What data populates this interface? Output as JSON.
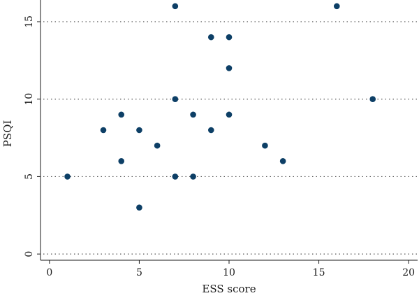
{
  "chart_data": {
    "type": "scatter",
    "title": "",
    "xlabel": "ESS score",
    "ylabel": "PSQI",
    "xlim": [
      -0.5,
      20.5
    ],
    "ylim": [
      -0.4,
      16.4
    ],
    "x_ticks": [
      0,
      5,
      10,
      15,
      20
    ],
    "y_ticks": [
      0,
      5,
      10,
      15
    ],
    "grid": "horizontal-dotted",
    "point_color": "#0d3f66",
    "series": [
      {
        "points": [
          [
            1,
            5
          ],
          [
            3,
            8
          ],
          [
            4,
            9
          ],
          [
            4,
            6
          ],
          [
            5,
            8
          ],
          [
            5,
            3
          ],
          [
            6,
            7
          ],
          [
            7,
            16
          ],
          [
            7,
            10
          ],
          [
            7,
            5
          ],
          [
            8,
            9
          ],
          [
            8,
            5
          ],
          [
            9,
            14
          ],
          [
            9,
            8
          ],
          [
            10,
            14
          ],
          [
            10,
            12
          ],
          [
            10,
            9
          ],
          [
            12,
            7
          ],
          [
            13,
            6
          ],
          [
            16,
            16
          ],
          [
            18,
            10
          ]
        ]
      }
    ]
  }
}
